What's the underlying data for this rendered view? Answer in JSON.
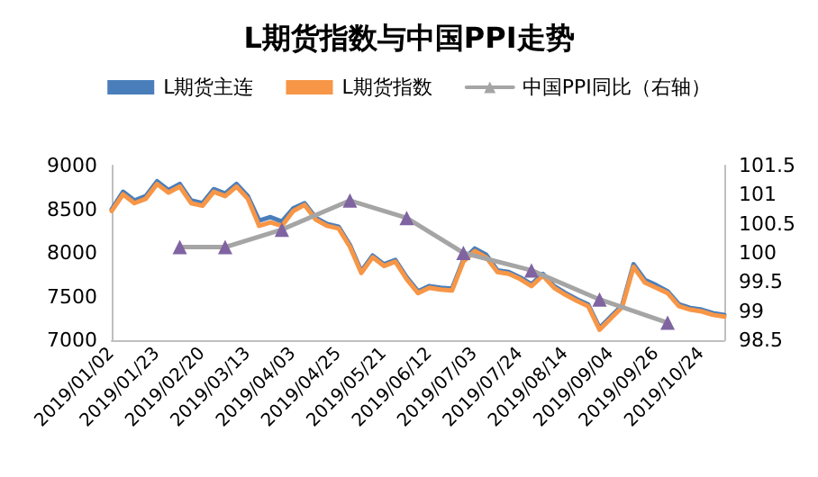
{
  "chart_data": {
    "type": "line",
    "title": "L期货指数与中国PPI走势",
    "categories": [
      "2019/01/02",
      null,
      null,
      null,
      "2019/01/23",
      null,
      null,
      null,
      "2019/02/20",
      null,
      null,
      null,
      "2019/03/13",
      null,
      null,
      null,
      "2019/04/03",
      null,
      null,
      null,
      "2019/04/25",
      null,
      null,
      null,
      "2019/05/21",
      null,
      null,
      null,
      "2019/06/12",
      null,
      null,
      null,
      "2019/07/03",
      null,
      null,
      null,
      "2019/07/24",
      null,
      null,
      null,
      "2019/08/14",
      null,
      null,
      null,
      "2019/09/04",
      null,
      null,
      null,
      "2019/09/26",
      null,
      null,
      null,
      "2019/10/24",
      null,
      null
    ],
    "series": [
      {
        "name": "L期货主连",
        "color": "#4a7ebb",
        "marker": "none",
        "values": [
          8500,
          8700,
          8600,
          8650,
          8820,
          8720,
          8790,
          8600,
          8570,
          8730,
          8680,
          8790,
          8650,
          8370,
          8410,
          8360,
          8510,
          8570,
          8400,
          8330,
          8300,
          8090,
          7790,
          7970,
          7870,
          7920,
          7720,
          7560,
          7620,
          7600,
          7590,
          7920,
          8050,
          7980,
          7800,
          7780,
          7720,
          7640,
          7760,
          7620,
          7540,
          7470,
          7410,
          7140,
          7270,
          7400,
          7870,
          7690,
          7630,
          7560,
          7410,
          7370,
          7350,
          7310,
          7290
        ]
      },
      {
        "name": "L期货指数",
        "color": "#f79646",
        "marker": "none",
        "values": [
          8480,
          8670,
          8570,
          8620,
          8790,
          8690,
          8760,
          8570,
          8540,
          8700,
          8650,
          8760,
          8620,
          8310,
          8350,
          8310,
          8480,
          8550,
          8380,
          8310,
          8280,
          8070,
          7770,
          7950,
          7850,
          7900,
          7700,
          7540,
          7600,
          7580,
          7570,
          7900,
          8020,
          7950,
          7780,
          7760,
          7700,
          7620,
          7740,
          7600,
          7520,
          7450,
          7390,
          7120,
          7250,
          7380,
          7840,
          7660,
          7600,
          7540,
          7390,
          7350,
          7330,
          7290,
          7270
        ]
      },
      {
        "name": "中国PPI同比（右轴）",
        "axis": "y2",
        "color": "#a5a5a5",
        "marker": "triangle",
        "values": [
          null,
          null,
          null,
          null,
          null,
          null,
          100.1,
          null,
          null,
          null,
          100.1,
          null,
          null,
          null,
          null,
          100.4,
          null,
          null,
          null,
          null,
          null,
          100.9,
          null,
          null,
          null,
          null,
          100.6,
          null,
          null,
          null,
          null,
          100.0,
          null,
          null,
          null,
          null,
          null,
          99.7,
          null,
          null,
          null,
          null,
          null,
          99.2,
          null,
          null,
          null,
          null,
          null,
          98.8,
          null,
          null,
          null,
          null,
          null
        ],
        "colors": [
          null,
          null,
          null,
          null,
          null,
          null,
          "#8064a2",
          null,
          null,
          null,
          "#8064a2",
          null,
          null,
          null,
          null,
          "#8064a2",
          null,
          null,
          null,
          null,
          null,
          "#8064a2",
          null,
          null,
          null,
          null,
          "#8064a2",
          null,
          null,
          null,
          null,
          "#8064a2",
          null,
          null,
          null,
          null,
          null,
          "#8064a2",
          null,
          null,
          null,
          null,
          null,
          "#8064a2",
          null,
          null,
          null,
          null,
          null,
          "#8064a2",
          null,
          null,
          null,
          null,
          null
        ]
      }
    ],
    "ylim": [
      7000,
      9000
    ],
    "yticks": [
      7000,
      7500,
      8000,
      8500,
      9000
    ],
    "y2lim": [
      98.5,
      101.5
    ],
    "y2ticks": [
      98.5,
      99,
      99.5,
      100,
      100.5,
      101,
      101.5
    ],
    "grid": false,
    "legend": "top"
  }
}
